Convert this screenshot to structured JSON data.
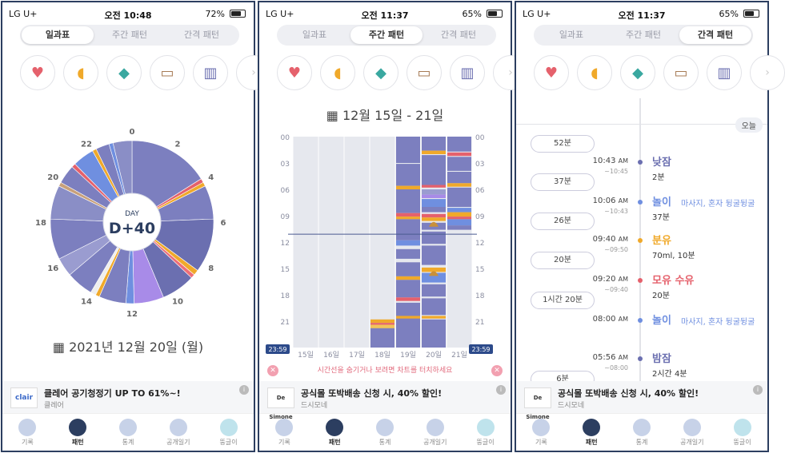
{
  "status": [
    {
      "carrier": "LG U+",
      "time": "오전 10:48",
      "battery": "72%"
    },
    {
      "carrier": "LG U+",
      "time": "오전 11:37",
      "battery": "65%"
    },
    {
      "carrier": "LG U+",
      "time": "오전 11:37",
      "battery": "65%"
    }
  ],
  "segments": [
    "일과표",
    "주간 패턴",
    "간격 패턴"
  ],
  "category_icons": [
    "nursing-icon",
    "bottle-icon",
    "pump-icon",
    "diaper-icon",
    "sleep-crib-icon"
  ],
  "screen1": {
    "day_label": "DAY",
    "day_value": "D+40",
    "hours": [
      "0",
      "2",
      "4",
      "6",
      "8",
      "10",
      "12",
      "14",
      "16",
      "18",
      "20",
      "22"
    ],
    "date": "2021년 12월 20일 (월)"
  },
  "screen2": {
    "title": "12월 15일 - 21일",
    "y_labels": [
      "00",
      "03",
      "06",
      "09",
      "12",
      "15",
      "18",
      "21"
    ],
    "x_labels": [
      "15일",
      "16일",
      "17일",
      "18일",
      "19일",
      "20일",
      "21일"
    ],
    "now_badge": "23:59",
    "hint": "시간선을 숨기거나 보려면 차트를 터치하세요"
  },
  "screen3": {
    "today": "오늘",
    "gaps": [
      "52분",
      "37분",
      "26분",
      "20분",
      "1시간 20분",
      "6분"
    ],
    "events": [
      {
        "time": "10:43",
        "ampm": "AM",
        "sub": "~10:45",
        "name": "낮잠",
        "value": "2분",
        "note": "",
        "color": "#6b6fb0"
      },
      {
        "time": "10:06",
        "ampm": "AM",
        "sub": "~10:43",
        "name": "놀이",
        "value": "37분",
        "note": "마사지, 혼자 뒹굴뒹굴",
        "color": "#6f8fe0"
      },
      {
        "time": "09:40",
        "ampm": "AM",
        "sub": "~09:50",
        "name": "분유",
        "value": "70ml, 10분",
        "note": "",
        "color": "#f0a92a"
      },
      {
        "time": "09:20",
        "ampm": "AM",
        "sub": "~09:40",
        "name": "모유 수유",
        "value": "20분",
        "note": "",
        "color": "#e5616c"
      },
      {
        "time": "08:00",
        "ampm": "AM",
        "sub": "",
        "name": "놀이",
        "value": "",
        "note": "마사지, 혼자 뒹굴뒹굴",
        "color": "#6f8fe0"
      },
      {
        "time": "05:56",
        "ampm": "AM",
        "sub": "~08:00",
        "name": "밤잠",
        "value": "2시간 4분",
        "note": "",
        "color": "#6b6fb0"
      }
    ]
  },
  "ads": [
    {
      "logo": "clair",
      "title": "클레어 공기청정기 UP TO 61%~!",
      "sub": "클레어"
    },
    {
      "logo": "De Simone",
      "title": "공식몰 또박배송 신청 시, 40% 할인!",
      "sub": "드시모네"
    },
    {
      "logo": "De Simone",
      "title": "공식몰 또박배송 신청 시, 40% 할인!",
      "sub": "드시모네"
    }
  ],
  "tabs": [
    "기록",
    "패턴",
    "통계",
    "공개일기",
    "뚱글이"
  ],
  "colors": {
    "sleep": "#7c7fbf",
    "play": "#6f8fe0",
    "formula": "#f0a92a",
    "nursing": "#e5616c",
    "diaper": "#c8a07a",
    "accent": "#2c3e60"
  }
}
